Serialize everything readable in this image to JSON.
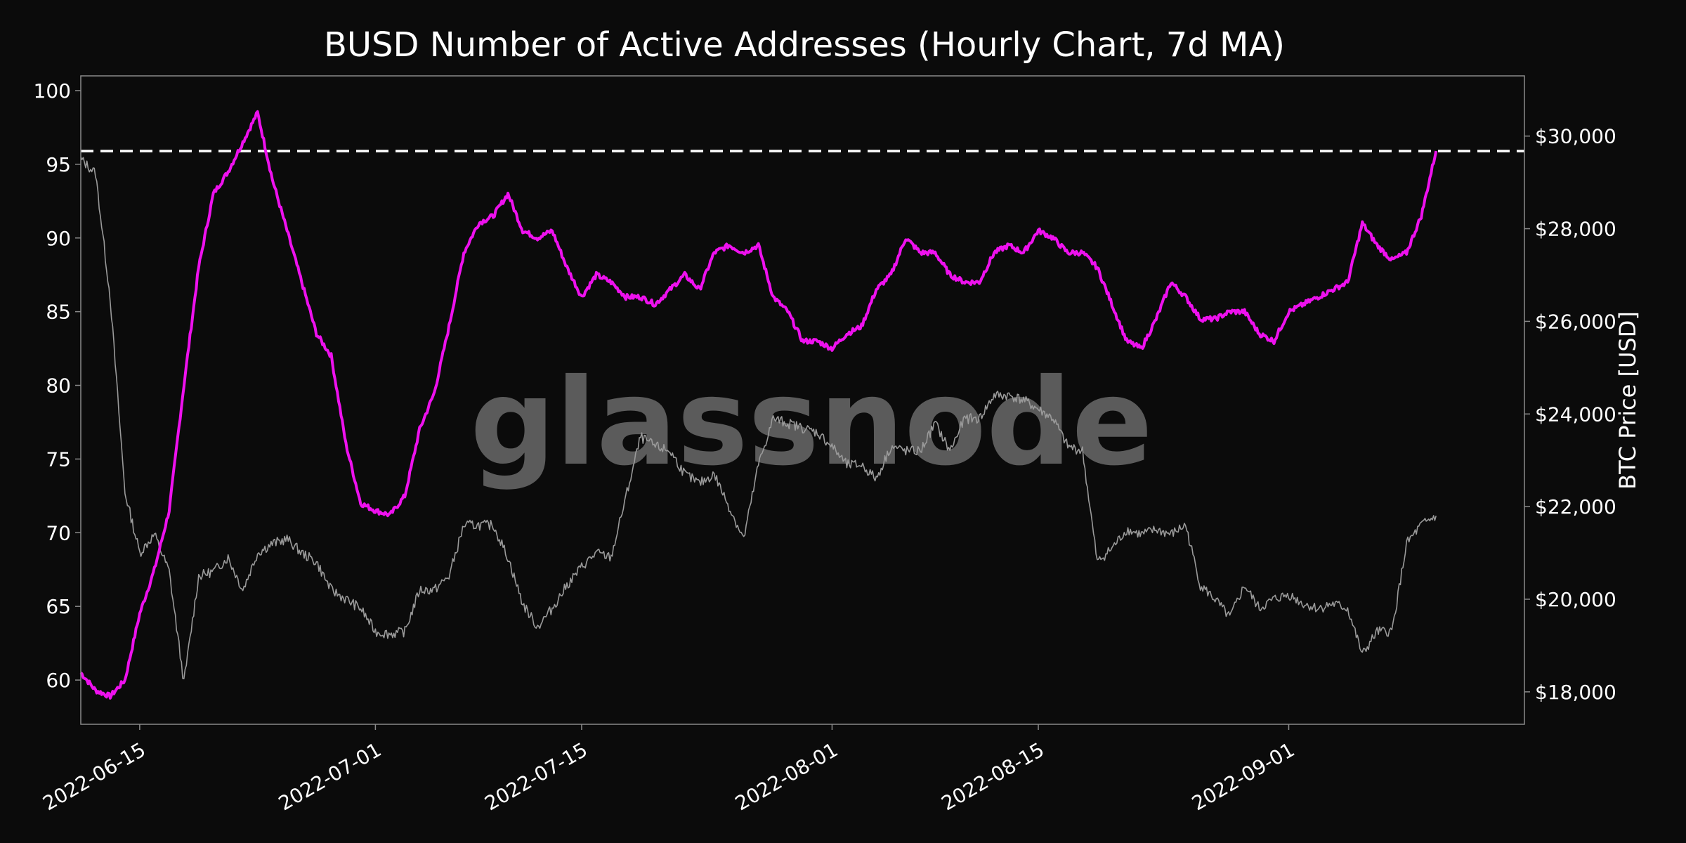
{
  "chart_data": {
    "type": "line",
    "title": "BUSD Number of Active Addresses (Hourly Chart, 7d MA)",
    "watermark": "glassnode",
    "xlabel": "",
    "x_ticks": [
      "2022-06-15",
      "2022-07-01",
      "2022-07-15",
      "2022-08-01",
      "2022-08-15",
      "2022-09-01"
    ],
    "xlim": [
      "2022-06-11",
      "2022-09-17"
    ],
    "y_left": {
      "label": "",
      "ylim": [
        57,
        101
      ],
      "ticks": [
        "60",
        "65",
        "70",
        "75",
        "80",
        "85",
        "90",
        "95",
        "100"
      ]
    },
    "y_right": {
      "label": "BTC Price [USD]",
      "ylim": [
        17300,
        31300
      ],
      "ticks": [
        "$18,000",
        "$20,000",
        "$22,000",
        "$24,000",
        "$26,000",
        "$28,000",
        "$30,000"
      ]
    },
    "reference_line": {
      "axis": "left",
      "value": 95.9,
      "style": "dashed",
      "color": "#ffffff"
    },
    "grid": false,
    "series": [
      {
        "axis": "left",
        "color": "#ee11ee",
        "points": [
          [
            "2022-06-11",
            60.5
          ],
          [
            "2022-06-12",
            59.3
          ],
          [
            "2022-06-13",
            58.9
          ],
          [
            "2022-06-14",
            60.0
          ],
          [
            "2022-06-15",
            64.5
          ],
          [
            "2022-06-16",
            67.5
          ],
          [
            "2022-06-17",
            71.5
          ],
          [
            "2022-06-18",
            80.0
          ],
          [
            "2022-06-19",
            88.0
          ],
          [
            "2022-06-20",
            93.0
          ],
          [
            "2022-06-21",
            94.5
          ],
          [
            "2022-06-22",
            96.5
          ],
          [
            "2022-06-23",
            98.5
          ],
          [
            "2022-06-24",
            94.0
          ],
          [
            "2022-06-25",
            90.5
          ],
          [
            "2022-06-26",
            87.0
          ],
          [
            "2022-06-27",
            83.5
          ],
          [
            "2022-06-28",
            82.0
          ],
          [
            "2022-06-29",
            76.0
          ],
          [
            "2022-06-30",
            72.0
          ],
          [
            "2022-07-01",
            71.5
          ],
          [
            "2022-07-02",
            71.2
          ],
          [
            "2022-07-03",
            72.5
          ],
          [
            "2022-07-04",
            77.0
          ],
          [
            "2022-07-05",
            79.5
          ],
          [
            "2022-07-06",
            84.0
          ],
          [
            "2022-07-07",
            89.0
          ],
          [
            "2022-07-08",
            91.0
          ],
          [
            "2022-07-09",
            91.5
          ],
          [
            "2022-07-10",
            93.0
          ],
          [
            "2022-07-11",
            90.5
          ],
          [
            "2022-07-12",
            90.0
          ],
          [
            "2022-07-13",
            90.5
          ],
          [
            "2022-07-14",
            88.0
          ],
          [
            "2022-07-15",
            86.0
          ],
          [
            "2022-07-16",
            87.5
          ],
          [
            "2022-07-17",
            87.0
          ],
          [
            "2022-07-18",
            86.0
          ],
          [
            "2022-07-19",
            86.0
          ],
          [
            "2022-07-20",
            85.5
          ],
          [
            "2022-07-21",
            86.5
          ],
          [
            "2022-07-22",
            87.5
          ],
          [
            "2022-07-23",
            86.5
          ],
          [
            "2022-07-24",
            89.0
          ],
          [
            "2022-07-25",
            89.5
          ],
          [
            "2022-07-26",
            89.0
          ],
          [
            "2022-07-27",
            89.5
          ],
          [
            "2022-07-28",
            86.0
          ],
          [
            "2022-07-29",
            85.0
          ],
          [
            "2022-07-30",
            83.0
          ],
          [
            "2022-07-31",
            83.0
          ],
          [
            "2022-08-01",
            82.5
          ],
          [
            "2022-08-02",
            83.5
          ],
          [
            "2022-08-03",
            84.0
          ],
          [
            "2022-08-04",
            86.5
          ],
          [
            "2022-08-05",
            87.5
          ],
          [
            "2022-08-06",
            90.0
          ],
          [
            "2022-08-07",
            89.0
          ],
          [
            "2022-08-08",
            89.0
          ],
          [
            "2022-08-09",
            87.5
          ],
          [
            "2022-08-10",
            87.0
          ],
          [
            "2022-08-11",
            87.0
          ],
          [
            "2022-08-12",
            89.0
          ],
          [
            "2022-08-13",
            89.5
          ],
          [
            "2022-08-14",
            89.0
          ],
          [
            "2022-08-15",
            90.5
          ],
          [
            "2022-08-16",
            90.0
          ],
          [
            "2022-08-17",
            89.0
          ],
          [
            "2022-08-18",
            89.0
          ],
          [
            "2022-08-19",
            88.0
          ],
          [
            "2022-08-20",
            85.5
          ],
          [
            "2022-08-21",
            83.0
          ],
          [
            "2022-08-22",
            82.5
          ],
          [
            "2022-08-23",
            84.5
          ],
          [
            "2022-08-24",
            87.0
          ],
          [
            "2022-08-25",
            86.0
          ],
          [
            "2022-08-26",
            84.5
          ],
          [
            "2022-08-27",
            84.5
          ],
          [
            "2022-08-28",
            85.0
          ],
          [
            "2022-08-29",
            85.0
          ],
          [
            "2022-08-30",
            83.5
          ],
          [
            "2022-08-31",
            83.0
          ],
          [
            "2022-09-01",
            85.0
          ],
          [
            "2022-09-02",
            85.5
          ],
          [
            "2022-09-03",
            86.0
          ],
          [
            "2022-09-04",
            86.5
          ],
          [
            "2022-09-05",
            87.0
          ],
          [
            "2022-09-06",
            91.0
          ],
          [
            "2022-09-07",
            89.5
          ],
          [
            "2022-09-08",
            88.5
          ],
          [
            "2022-09-09",
            89.0
          ],
          [
            "2022-09-10",
            91.5
          ],
          [
            "2022-09-11",
            95.9
          ]
        ]
      },
      {
        "axis": "right",
        "color": "#9a9a9a",
        "points": [
          [
            "2022-06-11",
            29500
          ],
          [
            "2022-06-12",
            29200
          ],
          [
            "2022-06-13",
            26500
          ],
          [
            "2022-06-14",
            22300
          ],
          [
            "2022-06-15",
            21000
          ],
          [
            "2022-06-16",
            21400
          ],
          [
            "2022-06-17",
            20600
          ],
          [
            "2022-06-18",
            18200
          ],
          [
            "2022-06-19",
            20500
          ],
          [
            "2022-06-20",
            20600
          ],
          [
            "2022-06-21",
            20900
          ],
          [
            "2022-06-22",
            20200
          ],
          [
            "2022-06-23",
            21000
          ],
          [
            "2022-06-24",
            21200
          ],
          [
            "2022-06-25",
            21300
          ],
          [
            "2022-06-26",
            21000
          ],
          [
            "2022-06-27",
            20800
          ],
          [
            "2022-06-28",
            20200
          ],
          [
            "2022-06-29",
            20000
          ],
          [
            "2022-06-30",
            19800
          ],
          [
            "2022-07-01",
            19300
          ],
          [
            "2022-07-02",
            19250
          ],
          [
            "2022-07-03",
            19300
          ],
          [
            "2022-07-04",
            20200
          ],
          [
            "2022-07-05",
            20200
          ],
          [
            "2022-07-06",
            20500
          ],
          [
            "2022-07-07",
            21600
          ],
          [
            "2022-07-08",
            21600
          ],
          [
            "2022-07-09",
            21600
          ],
          [
            "2022-07-10",
            20900
          ],
          [
            "2022-07-11",
            19900
          ],
          [
            "2022-07-12",
            19400
          ],
          [
            "2022-07-13",
            19800
          ],
          [
            "2022-07-14",
            20300
          ],
          [
            "2022-07-15",
            20700
          ],
          [
            "2022-07-16",
            21000
          ],
          [
            "2022-07-17",
            20900
          ],
          [
            "2022-07-18",
            22200
          ],
          [
            "2022-07-19",
            23500
          ],
          [
            "2022-07-20",
            23300
          ],
          [
            "2022-07-21",
            23200
          ],
          [
            "2022-07-22",
            22700
          ],
          [
            "2022-07-23",
            22500
          ],
          [
            "2022-07-24",
            22700
          ],
          [
            "2022-07-25",
            22000
          ],
          [
            "2022-07-26",
            21300
          ],
          [
            "2022-07-27",
            22900
          ],
          [
            "2022-07-28",
            23900
          ],
          [
            "2022-07-29",
            23800
          ],
          [
            "2022-07-30",
            23700
          ],
          [
            "2022-07-31",
            23600
          ],
          [
            "2022-08-01",
            23300
          ],
          [
            "2022-08-02",
            22900
          ],
          [
            "2022-08-03",
            22900
          ],
          [
            "2022-08-04",
            22600
          ],
          [
            "2022-08-05",
            23300
          ],
          [
            "2022-08-06",
            23200
          ],
          [
            "2022-08-07",
            23200
          ],
          [
            "2022-08-08",
            23800
          ],
          [
            "2022-08-09",
            23200
          ],
          [
            "2022-08-10",
            23900
          ],
          [
            "2022-08-11",
            23900
          ],
          [
            "2022-08-12",
            24400
          ],
          [
            "2022-08-13",
            24400
          ],
          [
            "2022-08-14",
            24300
          ],
          [
            "2022-08-15",
            24100
          ],
          [
            "2022-08-16",
            23900
          ],
          [
            "2022-08-17",
            23300
          ],
          [
            "2022-08-18",
            23200
          ],
          [
            "2022-08-19",
            20800
          ],
          [
            "2022-08-20",
            21100
          ],
          [
            "2022-08-21",
            21500
          ],
          [
            "2022-08-22",
            21400
          ],
          [
            "2022-08-23",
            21500
          ],
          [
            "2022-08-24",
            21400
          ],
          [
            "2022-08-25",
            21600
          ],
          [
            "2022-08-26",
            20300
          ],
          [
            "2022-08-27",
            20000
          ],
          [
            "2022-08-28",
            19600
          ],
          [
            "2022-08-29",
            20300
          ],
          [
            "2022-08-30",
            19800
          ],
          [
            "2022-08-31",
            20000
          ],
          [
            "2022-09-01",
            20100
          ],
          [
            "2022-09-02",
            19900
          ],
          [
            "2022-09-03",
            19800
          ],
          [
            "2022-09-04",
            19900
          ],
          [
            "2022-09-05",
            19800
          ],
          [
            "2022-09-06",
            18800
          ],
          [
            "2022-09-07",
            19300
          ],
          [
            "2022-09-08",
            19300
          ],
          [
            "2022-09-09",
            21200
          ],
          [
            "2022-09-10",
            21600
          ],
          [
            "2022-09-11",
            21800
          ]
        ]
      }
    ]
  }
}
